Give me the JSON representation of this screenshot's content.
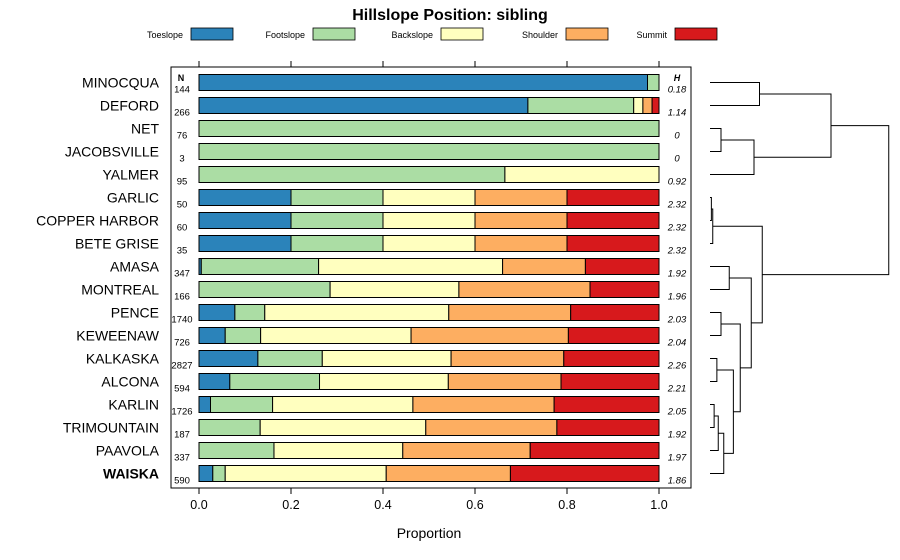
{
  "chart_data": {
    "type": "bar",
    "stacked": true,
    "orientation": "horizontal",
    "title": "Hillslope Position: sibling",
    "xlabel": "Proportion",
    "ylabel": "",
    "xlim": [
      0,
      1
    ],
    "x_ticks": [
      "0.0",
      "0.2",
      "0.4",
      "0.6",
      "0.8",
      "1.0"
    ],
    "legend_position": "top",
    "n_header": "N",
    "h_header": "H",
    "highlight_category": "WAISKA",
    "categories": [
      "MINOCQUA",
      "DEFORD",
      "NET",
      "JACOBSVILLE",
      "YALMER",
      "GARLIC",
      "COPPER HARBOR",
      "BETE GRISE",
      "AMASA",
      "MONTREAL",
      "PENCE",
      "KEWEENAW",
      "KALKASKA",
      "ALCONA",
      "KARLIN",
      "TRIMOUNTAIN",
      "PAAVOLA",
      "WAISKA"
    ],
    "n_values": [
      "144",
      "266",
      "76",
      "3",
      "95",
      "50",
      "60",
      "35",
      "347",
      "166",
      "1740",
      "726",
      "2827",
      "594",
      "1726",
      "187",
      "337",
      "590"
    ],
    "h_values": [
      "0.18",
      "1.14",
      "0",
      "0",
      "0.92",
      "2.32",
      "2.32",
      "2.32",
      "1.92",
      "1.96",
      "2.03",
      "2.04",
      "2.26",
      "2.21",
      "2.05",
      "1.92",
      "1.97",
      "1.86"
    ],
    "series": [
      {
        "name": "Toeslope",
        "color": "#2b83ba",
        "values": [
          0.975,
          0.715,
          0,
          0,
          0,
          0.2,
          0.2,
          0.2,
          0.005,
          0,
          0.078,
          0.057,
          0.128,
          0.067,
          0.025,
          0,
          0,
          0.03
        ]
      },
      {
        "name": "Footslope",
        "color": "#abdda4",
        "values": [
          0.025,
          0.23,
          1.0,
          1.0,
          0.665,
          0.2,
          0.2,
          0.2,
          0.255,
          0.285,
          0.065,
          0.077,
          0.14,
          0.195,
          0.135,
          0.133,
          0.163,
          0.027
        ]
      },
      {
        "name": "Backslope",
        "color": "#ffffbf",
        "values": [
          0,
          0.02,
          0,
          0,
          0.335,
          0.2,
          0.2,
          0.2,
          0.4,
          0.28,
          0.4,
          0.327,
          0.28,
          0.28,
          0.305,
          0.36,
          0.28,
          0.35
        ]
      },
      {
        "name": "Shoulder",
        "color": "#fdae61",
        "values": [
          0,
          0.02,
          0,
          0,
          0,
          0.2,
          0.2,
          0.2,
          0.18,
          0.285,
          0.265,
          0.342,
          0.245,
          0.245,
          0.307,
          0.285,
          0.277,
          0.27
        ]
      },
      {
        "name": "Summit",
        "color": "#d7191c",
        "values": [
          0,
          0.015,
          0,
          0,
          0,
          0.2,
          0.2,
          0.2,
          0.16,
          0.15,
          0.192,
          0.197,
          0.207,
          0.213,
          0.228,
          0.222,
          0.28,
          0.323
        ]
      }
    ],
    "dendrogram": {
      "leaves": [
        "MINOCQUA",
        "DEFORD",
        "NET",
        "JACOBSVILLE",
        "YALMER",
        "GARLIC",
        "COPPER HARBOR",
        "BETE GRISE",
        "AMASA",
        "MONTREAL",
        "PENCE",
        "KEWEENAW",
        "KALKASKA",
        "ALCONA",
        "KARLIN",
        "TRIMOUNTAIN",
        "PAAVOLA",
        "WAISKA"
      ],
      "merges": [
        {
          "a": 0,
          "b": 1,
          "height": 0.18
        },
        {
          "a": 2,
          "b": 3,
          "height": 0.04
        },
        {
          "a": 19,
          "b": 4,
          "height": 0.16
        },
        {
          "a": 18,
          "b": 20,
          "height": 0.44
        },
        {
          "a": 5,
          "b": 6,
          "height": 0.005
        },
        {
          "a": 22,
          "b": 7,
          "height": 0.01
        },
        {
          "a": 8,
          "b": 9,
          "height": 0.07
        },
        {
          "a": 10,
          "b": 11,
          "height": 0.04
        },
        {
          "a": 12,
          "b": 13,
          "height": 0.025
        },
        {
          "a": 14,
          "b": 15,
          "height": 0.015
        },
        {
          "a": 27,
          "b": 16,
          "height": 0.03
        },
        {
          "a": 28,
          "b": 17,
          "height": 0.05
        },
        {
          "a": 26,
          "b": 29,
          "height": 0.085
        },
        {
          "a": 25,
          "b": 30,
          "height": 0.11
        },
        {
          "a": 24,
          "b": 31,
          "height": 0.15
        },
        {
          "a": 23,
          "b": 32,
          "height": 0.19
        },
        {
          "a": 21,
          "b": 33,
          "height": 0.65
        }
      ]
    }
  }
}
